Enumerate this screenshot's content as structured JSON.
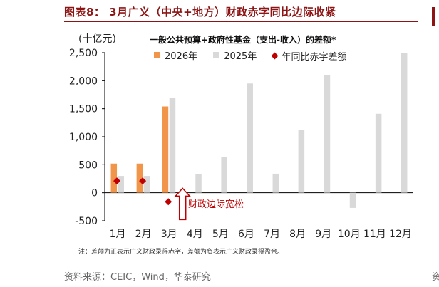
{
  "header": {
    "title": "图表8： 3月广义（中央+地方）财政赤字同比边际收紧"
  },
  "footer": {
    "note": "注：差额为正表示广义财政录得赤字，差额为负表示广义财政录得盈余。",
    "source": "资料来源：CEIC，Wind，华泰研究"
  },
  "chart_data": {
    "type": "bar",
    "title": "一般公共预算+政府性基金（支出-收入）的差额*",
    "unit_label": "(十亿元)",
    "categories": [
      "1月",
      "2月",
      "3月",
      "4月",
      "5月",
      "6月",
      "7月",
      "8月",
      "9月",
      "10月",
      "11月",
      "12月"
    ],
    "series": [
      {
        "name": "2026年",
        "color": "#f0954a",
        "values": [
          520,
          520,
          1540,
          null,
          null,
          null,
          null,
          null,
          null,
          null,
          null,
          null
        ]
      },
      {
        "name": "2025年",
        "color": "#d9d9d9",
        "values": [
          300,
          300,
          1690,
          330,
          640,
          1950,
          340,
          1120,
          2100,
          -270,
          1410,
          2490
        ]
      },
      {
        "name": "年同比赤字差额",
        "color": "#c00000",
        "marker": "diamond",
        "values": [
          210,
          210,
          -160,
          null,
          null,
          null,
          null,
          null,
          null,
          null,
          null,
          null
        ]
      }
    ],
    "ylim": [
      -500,
      2500
    ],
    "yticks": [
      -500,
      0,
      500,
      1000,
      1500,
      2000,
      2500
    ],
    "ytick_labels": [
      "-500",
      "0",
      "500",
      "1,000",
      "1,500",
      "2,000",
      "2,500"
    ],
    "legend_position": "top",
    "grid": false,
    "annotation": {
      "text": "财政边际宽松",
      "category": "3月",
      "color": "#c00000"
    }
  }
}
